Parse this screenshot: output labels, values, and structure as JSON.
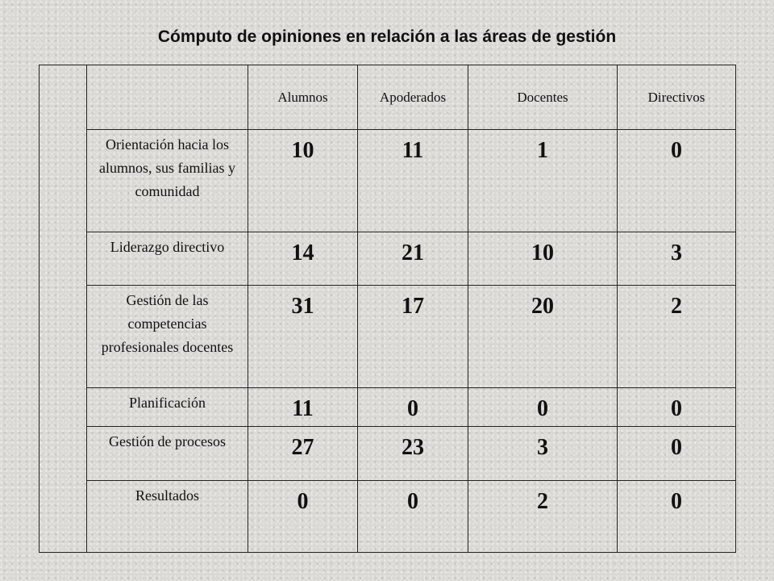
{
  "title": "Cómputo de opiniones en relación a las áreas de gestión",
  "table": {
    "columns": [
      "Alumnos",
      "Apoderados",
      "Docentes",
      "Directivos"
    ],
    "rows": [
      {
        "label": "Orientación hacia los alumnos, sus familias y comunidad",
        "values": [
          10,
          11,
          1,
          0
        ]
      },
      {
        "label": "Liderazgo directivo",
        "values": [
          14,
          21,
          10,
          3
        ]
      },
      {
        "label": "Gestión de las competencias profesionales docentes",
        "values": [
          31,
          17,
          20,
          2
        ]
      },
      {
        "label": "Planificación",
        "values": [
          11,
          0,
          0,
          0
        ]
      },
      {
        "label": "Gestión de procesos",
        "values": [
          27,
          23,
          3,
          0
        ]
      },
      {
        "label": "Resultados",
        "values": [
          0,
          0,
          2,
          0
        ]
      }
    ]
  }
}
